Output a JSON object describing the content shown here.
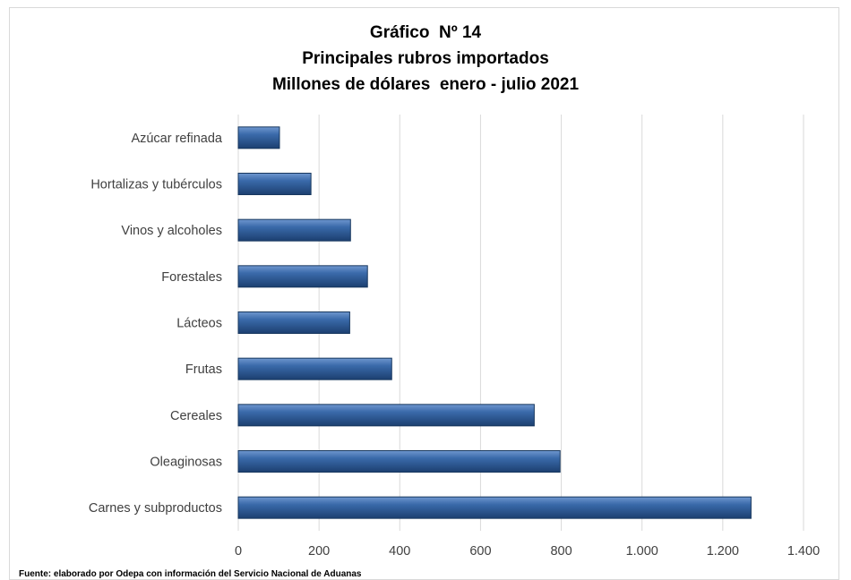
{
  "chart_data": {
    "type": "bar",
    "orientation": "horizontal",
    "title": [
      "Gráfico  Nº 14",
      "Principales rubros importados",
      "Millones de dólares  enero - julio 2021"
    ],
    "categories": [
      "Azúcar refinada",
      "Hortalizas y tubérculos",
      "Vinos y alcoholes",
      "Forestales",
      "Lácteos",
      "Frutas",
      "Cereales",
      "Oleaginosas",
      "Carnes y subproductos"
    ],
    "values": [
      102,
      180,
      278,
      320,
      276,
      380,
      733,
      797,
      1270
    ],
    "xlim": [
      0,
      1400
    ],
    "xticks": [
      0,
      200,
      400,
      600,
      800,
      1000,
      1200,
      1400
    ],
    "xtick_labels": [
      "0",
      "200",
      "400",
      "600",
      "800",
      "1.000",
      "1.200",
      "1.400"
    ],
    "xlabel": "",
    "ylabel": "",
    "grid": "vertical",
    "legend": "none",
    "bar_color": "#2e5c99",
    "bar_color_dark": "#17375e",
    "bar_color_light": "#5b86c2",
    "source": "Fuente:  elaborado por  Odepa con información del Servicio Nacional de Aduanas"
  }
}
